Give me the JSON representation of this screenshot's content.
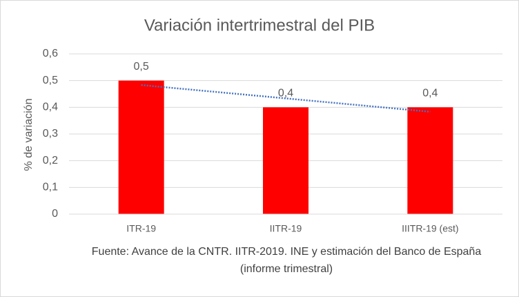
{
  "chart_data": {
    "type": "bar",
    "title": "Variación intertrimestral del PIB",
    "y_label": "% de variación",
    "categories": [
      "ITR-19",
      "IITR-19",
      "IIITR-19 (est)"
    ],
    "values": [
      0.5,
      0.4,
      0.4
    ],
    "value_labels": [
      "0,5",
      "0,4",
      "0,4"
    ],
    "color": "#ff0000",
    "ylim": [
      0,
      0.6
    ],
    "yticks": [
      0,
      {
        "value": 0.1,
        "label": "0,1"
      },
      {
        "value": 0.2,
        "label": "0,2"
      },
      {
        "value": 0.3,
        "label": "0,3"
      },
      {
        "value": 0.4,
        "label": "0,4"
      },
      {
        "value": 0.5,
        "label": "0,5"
      },
      {
        "value": 0.6,
        "label": "0,6"
      }
    ],
    "grid": true,
    "trendline": "linear",
    "trendline_color": "#4472c4",
    "source": "Fuente: Avance de la CNTR. IITR-2019. INE y estimación del Banco de España (informe trimestral)"
  }
}
